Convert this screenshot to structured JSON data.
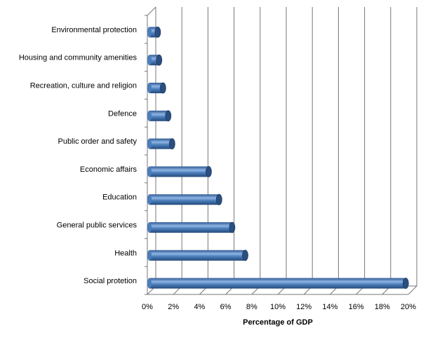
{
  "chart_data": {
    "type": "bar",
    "orientation": "horizontal",
    "style": "3d-cylinder",
    "categories": [
      "Environmental protection",
      "Housing and community amenities",
      "Recreation, culture and religion",
      "Defence",
      "Public order and safety",
      "Economic affairs",
      "Education",
      "General public services",
      "Health",
      "Social protetion"
    ],
    "values": [
      0.8,
      0.9,
      1.2,
      1.6,
      1.9,
      4.7,
      5.5,
      6.5,
      7.5,
      19.8
    ],
    "xlabel": "Percentage of GDP",
    "xlim": [
      0,
      20
    ],
    "xticks": [
      "0%",
      "2%",
      "4%",
      "6%",
      "8%",
      "10%",
      "12%",
      "14%",
      "16%",
      "18%",
      "20%"
    ],
    "grid": true,
    "legend": "none",
    "colors": {
      "bar": "#4a7ebb",
      "bar_dark": "#2a4f80",
      "bar_light": "#8fb4e3",
      "grid": "#777777"
    }
  }
}
